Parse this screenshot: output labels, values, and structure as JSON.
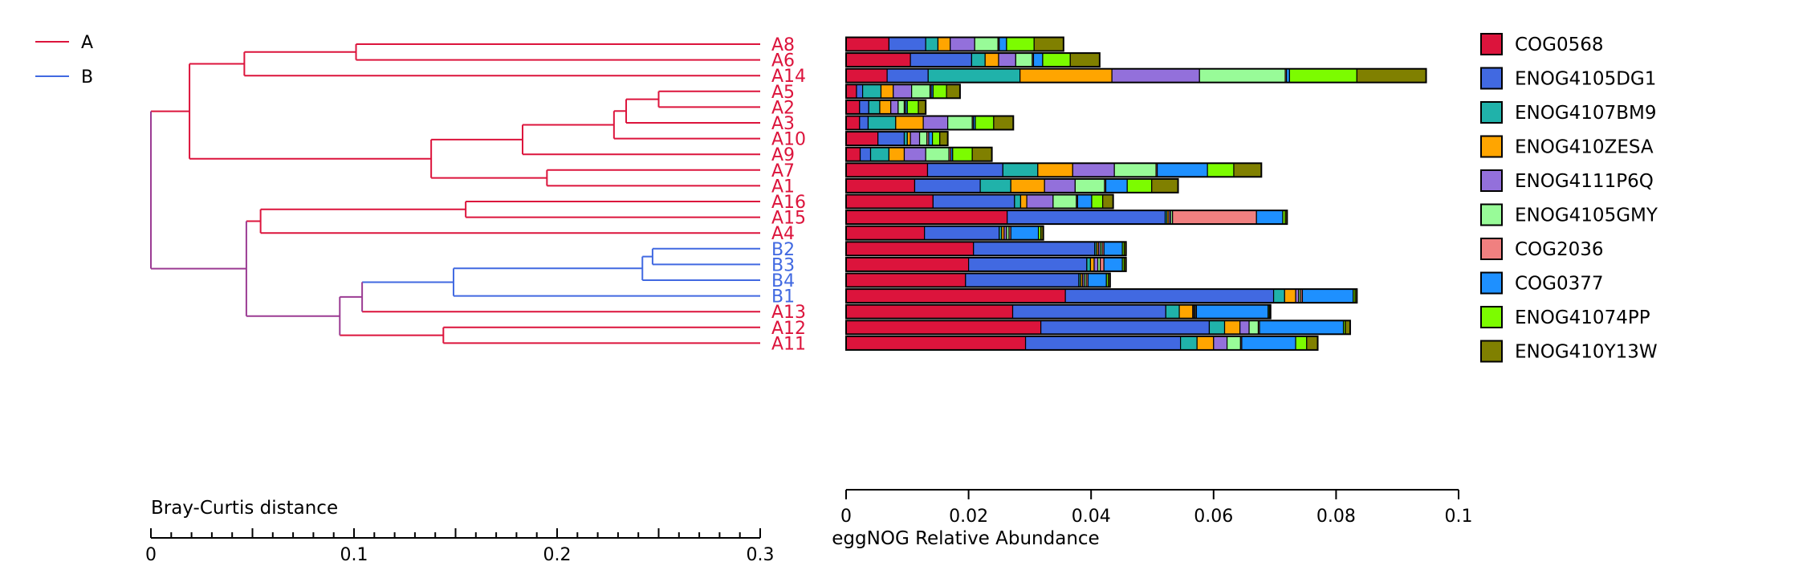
{
  "chart_data": [
    {
      "type": "dendrogram",
      "xlabel": "Bray-Curtis distance",
      "xlim": [
        0,
        0.3
      ],
      "xticks": [
        0,
        0.1,
        0.2,
        0.3
      ],
      "xtick_labels": [
        "0",
        "0.1",
        "0.2",
        "0.3"
      ],
      "groups": [
        {
          "name": "A",
          "color": "#dc143c"
        },
        {
          "name": "B",
          "color": "#4169e1"
        }
      ],
      "merge_color": "#9b3b93",
      "leaves": [
        {
          "label": "A8",
          "group": "A"
        },
        {
          "label": "A6",
          "group": "A"
        },
        {
          "label": "A14",
          "group": "A"
        },
        {
          "label": "A5",
          "group": "A"
        },
        {
          "label": "A2",
          "group": "A"
        },
        {
          "label": "A3",
          "group": "A"
        },
        {
          "label": "A10",
          "group": "A"
        },
        {
          "label": "A9",
          "group": "A"
        },
        {
          "label": "A7",
          "group": "A"
        },
        {
          "label": "A1",
          "group": "A"
        },
        {
          "label": "A16",
          "group": "A"
        },
        {
          "label": "A15",
          "group": "A"
        },
        {
          "label": "A4",
          "group": "A"
        },
        {
          "label": "B2",
          "group": "B"
        },
        {
          "label": "B3",
          "group": "B"
        },
        {
          "label": "B4",
          "group": "B"
        },
        {
          "label": "B1",
          "group": "B"
        },
        {
          "label": "A13",
          "group": "A"
        },
        {
          "label": "A12",
          "group": "A"
        },
        {
          "label": "A11",
          "group": "A"
        }
      ],
      "merges": [
        {
          "id": "n1",
          "a": "A8",
          "b": "A6",
          "height": 0.199
        },
        {
          "id": "n2",
          "a": "n1",
          "b": "A14",
          "height": 0.254
        },
        {
          "id": "n3",
          "a": "A5",
          "b": "A2",
          "height": 0.05
        },
        {
          "id": "n4",
          "a": "n3",
          "b": "A3",
          "height": 0.066
        },
        {
          "id": "n5",
          "a": "n4",
          "b": "A10",
          "height": 0.072
        },
        {
          "id": "n6",
          "a": "n5",
          "b": "A9",
          "height": 0.117
        },
        {
          "id": "n7",
          "a": "A7",
          "b": "A1",
          "height": 0.105
        },
        {
          "id": "n8",
          "a": "n6",
          "b": "n7",
          "height": 0.162
        },
        {
          "id": "n9",
          "a": "n2",
          "b": "n8",
          "height": 0.281
        },
        {
          "id": "n10",
          "a": "A16",
          "b": "A15",
          "height": 0.145
        },
        {
          "id": "n11",
          "a": "n10",
          "b": "A4",
          "height": 0.246
        },
        {
          "id": "n12",
          "a": "B2",
          "b": "B3",
          "height": 0.053
        },
        {
          "id": "n13",
          "a": "n12",
          "b": "B4",
          "height": 0.058
        },
        {
          "id": "n14",
          "a": "n13",
          "b": "B1",
          "height": 0.151
        },
        {
          "id": "n15",
          "a": "n14",
          "b": "A13",
          "height": 0.196
        },
        {
          "id": "n16",
          "a": "A12",
          "b": "A11",
          "height": 0.156
        },
        {
          "id": "n17",
          "a": "n15",
          "b": "n16",
          "height": 0.207
        },
        {
          "id": "n18",
          "a": "n11",
          "b": "n17",
          "height": 0.253
        },
        {
          "id": "n19",
          "a": "n9",
          "b": "n18",
          "height": 0.3
        }
      ]
    },
    {
      "type": "stacked_bar_horizontal",
      "xlabel": "eggNOG Relative Abundance",
      "xlim": [
        0,
        0.1
      ],
      "xticks": [
        0,
        0.02,
        0.04,
        0.06,
        0.08,
        0.1
      ],
      "xtick_labels": [
        "0",
        "0.02",
        "0.04",
        "0.06",
        "0.08",
        "0.1"
      ],
      "legend_position": "right",
      "series": [
        {
          "name": "COG0568",
          "color": "#dc143c",
          "values": [
            0.007,
            0.0105,
            0.0067,
            0.0017,
            0.0022,
            0.0022,
            0.0052,
            0.0023,
            0.0133,
            0.0112,
            0.0142,
            0.0263,
            0.0128,
            0.0208,
            0.02,
            0.0195,
            0.0358,
            0.0272,
            0.0318,
            0.0293
          ]
        },
        {
          "name": "ENOG4105DG1",
          "color": "#4169e1",
          "values": [
            0.006,
            0.01,
            0.0067,
            0.001,
            0.0015,
            0.0014,
            0.0043,
            0.0017,
            0.0123,
            0.0107,
            0.0133,
            0.0258,
            0.0122,
            0.0198,
            0.0193,
            0.0185,
            0.034,
            0.025,
            0.0275,
            0.0253
          ]
        },
        {
          "name": "ENOG4107BM9",
          "color": "#20b2aa",
          "values": [
            0.002,
            0.0022,
            0.015,
            0.003,
            0.0018,
            0.0045,
            0.0005,
            0.003,
            0.0057,
            0.005,
            0.001,
            0.0003,
            0.0004,
            0.0003,
            0.0006,
            0.0003,
            0.0018,
            0.0022,
            0.0025,
            0.0027
          ]
        },
        {
          "name": "ENOG410ZESA",
          "color": "#ffa500",
          "values": [
            0.002,
            0.0022,
            0.015,
            0.002,
            0.0018,
            0.0045,
            0.0005,
            0.0025,
            0.0057,
            0.0055,
            0.001,
            0.0003,
            0.0004,
            0.0003,
            0.0006,
            0.0003,
            0.0018,
            0.0022,
            0.0025,
            0.0027
          ]
        },
        {
          "name": "ENOG4111P6Q",
          "color": "#9370db",
          "values": [
            0.004,
            0.0028,
            0.0143,
            0.003,
            0.0012,
            0.004,
            0.0015,
            0.0035,
            0.0068,
            0.005,
            0.0043,
            0.0003,
            0.0004,
            0.0003,
            0.0006,
            0.0003,
            0.0005,
            0.0002,
            0.0015,
            0.0022
          ]
        },
        {
          "name": "ENOG4105GMY",
          "color": "#98fb98",
          "values": [
            0.0038,
            0.0027,
            0.014,
            0.003,
            0.001,
            0.004,
            0.0012,
            0.0038,
            0.0068,
            0.0048,
            0.0038,
            0.0003,
            0.0004,
            0.0003,
            0.0004,
            0.0003,
            0.0003,
            0.0002,
            0.0015,
            0.0022
          ]
        },
        {
          "name": "COG2036",
          "color": "#f08080",
          "values": [
            0.0002,
            0.0002,
            0.0002,
            0.0002,
            0.0002,
            0.0002,
            0.0003,
            0.0003,
            0.0002,
            0.0002,
            0.0002,
            0.0137,
            0.0003,
            0.0003,
            0.0006,
            0.0003,
            0.0003,
            0.0002,
            0.0002,
            0.0002
          ]
        },
        {
          "name": "COG0377",
          "color": "#1e90ff",
          "values": [
            0.0012,
            0.0015,
            0.0005,
            0.0003,
            0.0003,
            0.0003,
            0.0006,
            0.0003,
            0.0082,
            0.0035,
            0.0023,
            0.0043,
            0.0045,
            0.003,
            0.003,
            0.003,
            0.0083,
            0.0117,
            0.0137,
            0.0088
          ]
        },
        {
          "name": "ENOG41074PP",
          "color": "#7cfc00",
          "values": [
            0.0045,
            0.0045,
            0.011,
            0.0022,
            0.0018,
            0.003,
            0.0012,
            0.0032,
            0.0043,
            0.004,
            0.0018,
            0.0004,
            0.0004,
            0.0003,
            0.0003,
            0.0003,
            0.0003,
            0.0002,
            0.0003,
            0.0018
          ]
        },
        {
          "name": "ENOG410Y13W",
          "color": "#808000",
          "values": [
            0.0048,
            0.0048,
            0.0113,
            0.0022,
            0.0012,
            0.0032,
            0.0013,
            0.0032,
            0.0045,
            0.0043,
            0.0017,
            0.0003,
            0.0004,
            0.0003,
            0.0003,
            0.0003,
            0.0003,
            0.0002,
            0.0008,
            0.0018
          ]
        }
      ]
    }
  ]
}
